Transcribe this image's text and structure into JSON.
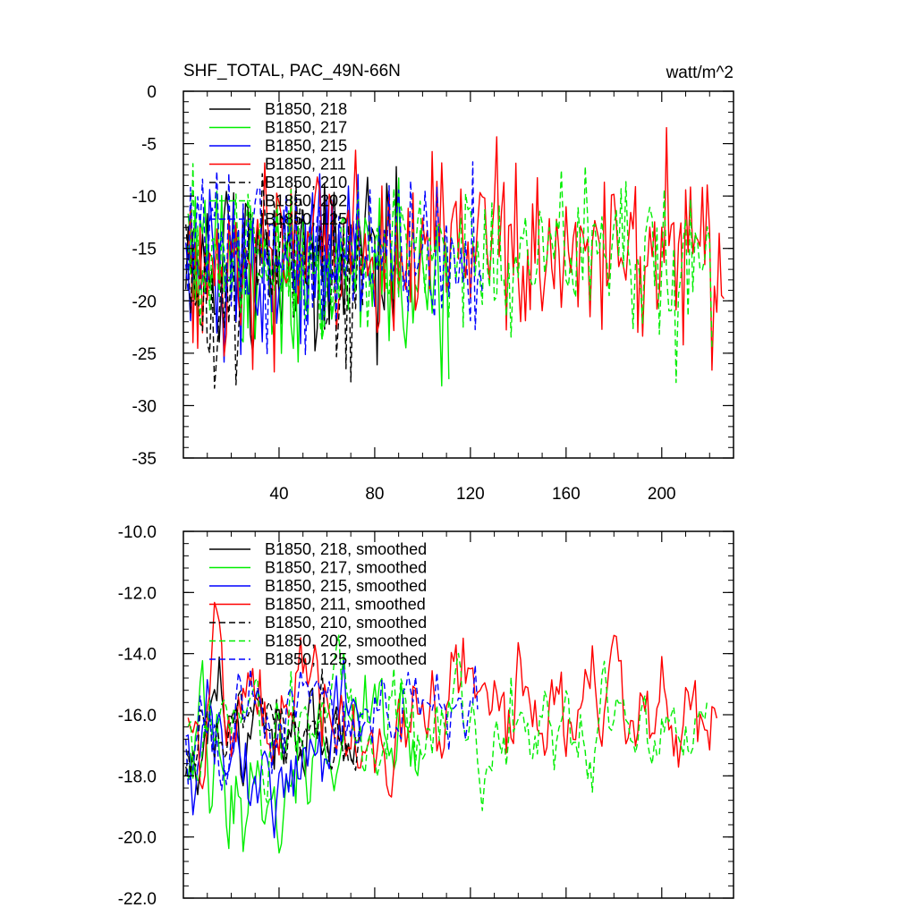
{
  "chart_data": [
    {
      "type": "line",
      "title": "SHF_TOTAL, PAC_49N-66N",
      "units": "watt/m^2",
      "ylim": [
        -35,
        0
      ],
      "yticks": [
        0,
        -5,
        -10,
        -15,
        -20,
        -25,
        -30,
        -35
      ],
      "yticklabels": [
        "0",
        "-5",
        "-10",
        "-15",
        "-20",
        "-25",
        "-30",
        "-35"
      ],
      "xlim": [
        0,
        230
      ],
      "xticks": [
        40,
        80,
        120,
        160,
        200
      ],
      "xticklabels": [
        "40",
        "80",
        "120",
        "160",
        "200"
      ],
      "legend": "top-left",
      "series": [
        {
          "name": "B1850, 218",
          "color": "#000000",
          "dash": "solid",
          "length": 90,
          "mean": -16.8,
          "amp": 4.2
        },
        {
          "name": "B1850, 217",
          "color": "#00ee00",
          "dash": "solid",
          "length": 110,
          "mean": -17.0,
          "amp": 4.6
        },
        {
          "name": "B1850, 215",
          "color": "#0000ff",
          "dash": "solid",
          "length": 80,
          "mean": -16.8,
          "amp": 4.0
        },
        {
          "name": "B1850, 211",
          "color": "#ff0000",
          "dash": "solid",
          "length": 225,
          "mean": -15.2,
          "amp": 4.0
        },
        {
          "name": "B1850, 210",
          "color": "#000000",
          "dash": "dashed",
          "length": 75,
          "mean": -16.5,
          "amp": 4.2
        },
        {
          "name": "B1850, 202",
          "color": "#00ee00",
          "dash": "dashed",
          "length": 220,
          "mean": -15.8,
          "amp": 4.0
        },
        {
          "name": "B1850, 125",
          "color": "#0000ff",
          "dash": "dashed",
          "length": 125,
          "mean": -16.0,
          "amp": 3.8
        }
      ]
    },
    {
      "type": "line",
      "title": "",
      "ylim": [
        -22.0,
        -10.0
      ],
      "yticks": [
        -10,
        -12,
        -14,
        -16,
        -18,
        -20,
        -22
      ],
      "yticklabels": [
        "-10.0",
        "-12.0",
        "-14.0",
        "-16.0",
        "-18.0",
        "-20.0",
        "-22.0"
      ],
      "xlim": [
        0,
        230
      ],
      "xticks": [
        40,
        80,
        120,
        160,
        200
      ],
      "legend": "top-left",
      "series": [
        {
          "name": "B1850, 218, smoothed",
          "color": "#000000",
          "dash": "solid",
          "length": 72,
          "mean": -17.0,
          "amp": 1.4
        },
        {
          "name": "B1850, 217, smoothed",
          "color": "#00ee00",
          "dash": "solid",
          "length": 98,
          "mean": -17.3,
          "amp": 1.6
        },
        {
          "name": "B1850, 215, smoothed",
          "color": "#0000ff",
          "dash": "solid",
          "length": 76,
          "mean": -17.0,
          "amp": 1.3
        },
        {
          "name": "B1850, 211, smoothed",
          "color": "#ff0000",
          "dash": "solid",
          "length": 222,
          "mean": -15.6,
          "amp": 1.5
        },
        {
          "name": "B1850, 210, smoothed",
          "color": "#000000",
          "dash": "dashed",
          "length": 74,
          "mean": -16.8,
          "amp": 1.3
        },
        {
          "name": "B1850, 202, smoothed",
          "color": "#00ee00",
          "dash": "dashed",
          "length": 218,
          "mean": -16.1,
          "amp": 1.3
        },
        {
          "name": "B1850, 125, smoothed",
          "color": "#0000ff",
          "dash": "dashed",
          "length": 123,
          "mean": -16.4,
          "amp": 1.2
        }
      ]
    }
  ]
}
